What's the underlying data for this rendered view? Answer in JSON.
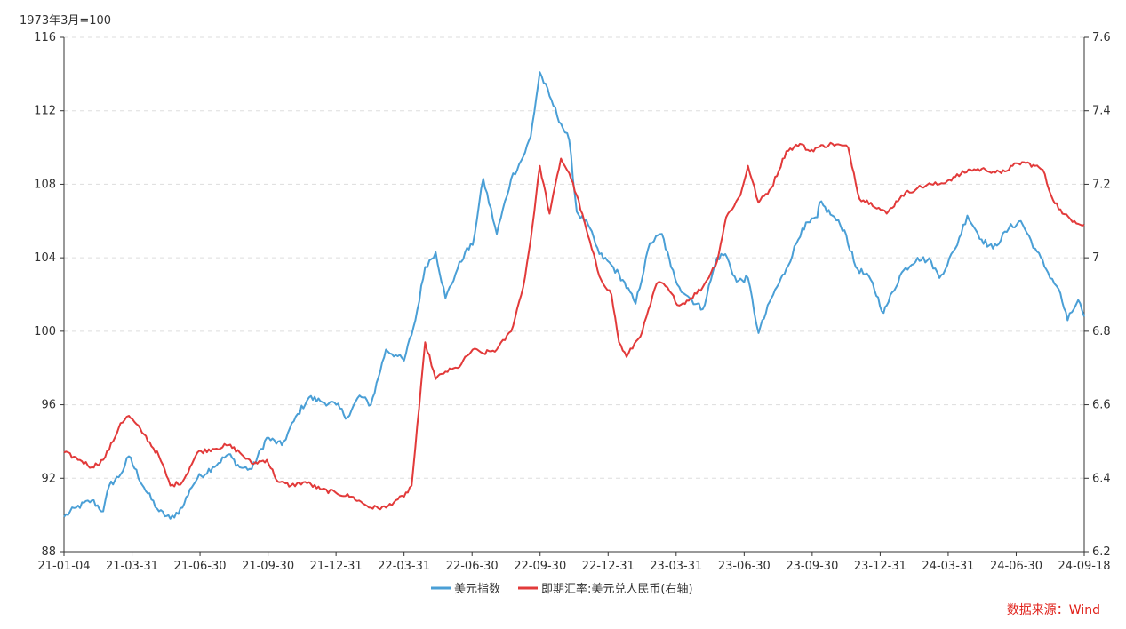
{
  "chart_data": {
    "type": "line",
    "left_unit_label": "1973年3月=100",
    "x_tick_labels": [
      "21-01-04",
      "21-03-31",
      "21-06-30",
      "21-09-30",
      "21-12-31",
      "22-03-31",
      "22-06-30",
      "22-09-30",
      "22-12-31",
      "23-03-31",
      "23-06-30",
      "23-09-30",
      "23-12-31",
      "24-03-31",
      "24-06-30",
      "24-09-18"
    ],
    "y_left": {
      "ticks": [
        88,
        92,
        96,
        100,
        104,
        108,
        112,
        116
      ],
      "ylim": [
        88,
        116
      ]
    },
    "y_right": {
      "ticks": [
        "6.2",
        "6.4",
        "6.6",
        "6.8",
        "7",
        "7.2",
        "7.4",
        "7.6"
      ],
      "ylim": [
        6.2,
        7.6
      ]
    },
    "grid": "horizontal dashed",
    "legend_placement": "bottom-center",
    "series": [
      {
        "name": "美元指数",
        "axis": "left",
        "color": "#4a9fd6",
        "x": [
          "2021-01-04",
          "2021-01-20",
          "2021-02-10",
          "2021-02-25",
          "2021-03-05",
          "2021-03-20",
          "2021-03-31",
          "2021-04-20",
          "2021-05-10",
          "2021-05-25",
          "2021-06-10",
          "2021-06-20",
          "2021-06-30",
          "2021-07-20",
          "2021-08-10",
          "2021-08-25",
          "2021-09-10",
          "2021-09-30",
          "2021-10-20",
          "2021-11-10",
          "2021-11-25",
          "2021-12-10",
          "2021-12-31",
          "2022-01-15",
          "2022-01-31",
          "2022-02-15",
          "2022-03-07",
          "2022-03-20",
          "2022-03-31",
          "2022-04-15",
          "2022-04-28",
          "2022-05-12",
          "2022-05-25",
          "2022-06-10",
          "2022-06-20",
          "2022-06-30",
          "2022-07-14",
          "2022-08-01",
          "2022-08-20",
          "2022-09-05",
          "2022-09-15",
          "2022-09-27",
          "2022-10-10",
          "2022-10-25",
          "2022-11-05",
          "2022-11-15",
          "2022-11-30",
          "2022-12-15",
          "2022-12-31",
          "2023-01-15",
          "2023-02-01",
          "2023-02-20",
          "2023-03-08",
          "2023-03-20",
          "2023-03-31",
          "2023-04-14",
          "2023-05-01",
          "2023-05-20",
          "2023-05-31",
          "2023-06-15",
          "2023-06-30",
          "2023-07-14",
          "2023-07-31",
          "2023-08-20",
          "2023-09-10",
          "2023-09-30",
          "2023-10-03",
          "2023-10-20",
          "2023-11-05",
          "2023-11-20",
          "2023-12-10",
          "2023-12-27",
          "2023-12-31",
          "2024-01-20",
          "2024-02-10",
          "2024-02-28",
          "2024-03-10",
          "2024-03-31",
          "2024-04-16",
          "2024-05-05",
          "2024-05-20",
          "2024-06-10",
          "2024-06-26",
          "2024-07-15",
          "2024-08-01",
          "2024-08-15",
          "2024-08-27",
          "2024-09-10",
          "2024-09-18"
        ],
        "values": [
          89.9,
          90.4,
          90.8,
          90.2,
          91.6,
          92.2,
          93.2,
          91.5,
          90.2,
          89.8,
          90.4,
          91.4,
          92.0,
          92.6,
          93.3,
          92.6,
          92.5,
          94.2,
          93.8,
          95.5,
          96.4,
          96.2,
          96.0,
          95.3,
          96.5,
          96.0,
          99.0,
          98.7,
          98.4,
          100.6,
          103.5,
          104.3,
          101.8,
          103.4,
          104.3,
          104.7,
          108.3,
          105.3,
          108.3,
          109.5,
          110.6,
          114.1,
          112.8,
          111.3,
          110.4,
          106.5,
          105.8,
          104.2,
          103.6,
          102.8,
          101.5,
          104.8,
          105.3,
          103.5,
          102.4,
          101.8,
          101.2,
          104.0,
          104.2,
          102.7,
          102.9,
          99.9,
          101.8,
          103.4,
          105.6,
          106.2,
          107.0,
          106.3,
          105.5,
          103.5,
          102.8,
          101.0,
          101.4,
          103.2,
          104.0,
          103.8,
          102.9,
          104.5,
          106.3,
          105.0,
          104.5,
          105.6,
          106.0,
          104.5,
          103.2,
          102.3,
          100.6,
          101.7,
          100.8
        ]
      },
      {
        "name": "即期汇率:美元兑人民币(右轴)",
        "axis": "right",
        "color": "#e23a3a",
        "x": [
          "2021-01-04",
          "2021-01-25",
          "2021-02-10",
          "2021-02-25",
          "2021-03-10",
          "2021-03-20",
          "2021-03-31",
          "2021-04-20",
          "2021-05-10",
          "2021-05-25",
          "2021-06-10",
          "2021-06-20",
          "2021-06-30",
          "2021-07-20",
          "2021-08-10",
          "2021-08-25",
          "2021-09-10",
          "2021-09-30",
          "2021-10-15",
          "2021-11-01",
          "2021-11-20",
          "2021-12-10",
          "2021-12-31",
          "2022-01-20",
          "2022-02-15",
          "2022-03-07",
          "2022-03-20",
          "2022-03-31",
          "2022-04-10",
          "2022-04-20",
          "2022-04-28",
          "2022-05-12",
          "2022-05-25",
          "2022-06-10",
          "2022-06-30",
          "2022-07-14",
          "2022-08-01",
          "2022-08-20",
          "2022-09-05",
          "2022-09-15",
          "2022-09-27",
          "2022-10-10",
          "2022-10-25",
          "2022-11-05",
          "2022-11-15",
          "2022-11-30",
          "2022-12-15",
          "2022-12-31",
          "2023-01-10",
          "2023-01-20",
          "2023-02-10",
          "2023-03-01",
          "2023-03-10",
          "2023-03-31",
          "2023-04-15",
          "2023-05-01",
          "2023-05-20",
          "2023-06-01",
          "2023-06-20",
          "2023-06-30",
          "2023-07-14",
          "2023-07-31",
          "2023-08-20",
          "2023-09-07",
          "2023-09-20",
          "2023-09-30",
          "2023-10-20",
          "2023-11-10",
          "2023-11-25",
          "2023-12-10",
          "2023-12-31",
          "2024-01-20",
          "2024-02-10",
          "2024-02-28",
          "2024-03-10",
          "2024-03-31",
          "2024-04-20",
          "2024-05-10",
          "2024-05-31",
          "2024-06-15",
          "2024-06-30",
          "2024-07-15",
          "2024-07-25",
          "2024-08-05",
          "2024-08-20",
          "2024-09-05",
          "2024-09-18"
        ],
        "values": [
          6.47,
          6.45,
          6.43,
          6.45,
          6.5,
          6.55,
          6.57,
          6.52,
          6.46,
          6.38,
          6.39,
          6.43,
          6.47,
          6.48,
          6.49,
          6.47,
          6.44,
          6.45,
          6.39,
          6.38,
          6.39,
          6.37,
          6.36,
          6.35,
          6.32,
          6.32,
          6.34,
          6.35,
          6.38,
          6.59,
          6.77,
          6.67,
          6.69,
          6.7,
          6.75,
          6.74,
          6.75,
          6.8,
          6.92,
          7.05,
          7.25,
          7.12,
          7.27,
          7.23,
          7.17,
          7.06,
          6.95,
          6.9,
          6.77,
          6.73,
          6.8,
          6.93,
          6.93,
          6.87,
          6.89,
          6.92,
          6.99,
          7.11,
          7.17,
          7.25,
          7.15,
          7.19,
          7.29,
          7.31,
          7.29,
          7.3,
          7.31,
          7.3,
          7.16,
          7.15,
          7.12,
          7.17,
          7.19,
          7.2,
          7.2,
          7.22,
          7.24,
          7.24,
          7.23,
          7.25,
          7.26,
          7.25,
          7.24,
          7.17,
          7.12,
          7.1,
          7.09
        ]
      }
    ]
  },
  "source_note": "数据来源：Wind",
  "colors": {
    "axis": "#333333",
    "grid": "#dddddd",
    "source": "#e0211a"
  }
}
